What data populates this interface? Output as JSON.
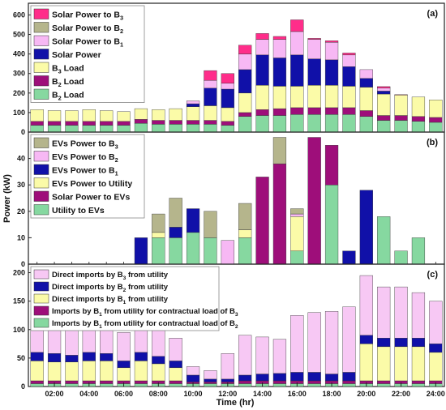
{
  "chart_data": {
    "type": "bar",
    "y_axis_label": "Power (kW)",
    "x_axis_label": "Time (hr)",
    "x_tick_labels": [
      "02:00",
      "04:00",
      "06:00",
      "08:00",
      "10:00",
      "12:00",
      "14:00",
      "16:00",
      "18:00",
      "20:00",
      "22:00",
      "24:00"
    ],
    "hours": [
      1,
      2,
      3,
      4,
      5,
      6,
      7,
      8,
      9,
      10,
      11,
      12,
      13,
      14,
      15,
      16,
      17,
      18,
      19,
      20,
      21,
      22,
      23,
      24
    ],
    "panels": [
      {
        "label": "(a)",
        "ylim": [
          0,
          660
        ],
        "yticks": [
          0,
          100,
          200,
          300,
          400,
          500,
          600
        ],
        "legend_position": "top-left",
        "legend": [
          {
            "text": "Solar Power to B",
            "sub": "3",
            "color": "#ff2d8a"
          },
          {
            "text": "Solar Power to B",
            "sub": "2",
            "color": "#b5b58c"
          },
          {
            "text": "Solar Power to B",
            "sub": "1",
            "color": "#f7b8f4"
          },
          {
            "text": "Solar Power",
            "sub": "",
            "color": "#1010a8"
          },
          {
            "text": "B",
            "sub": "3",
            "suffix": " Load",
            "color": "#fbfba8"
          },
          {
            "text": "B",
            "sub": "2",
            "suffix": " Load",
            "color": "#9e0e7a"
          },
          {
            "text": "B",
            "sub": "2",
            "suffix": " Load",
            "color": "#86d8a0"
          }
        ],
        "series": [
          {
            "name": "B2 Load (base)",
            "color": "#86d8a0",
            "values": [
              35,
              35,
              35,
              35,
              35,
              35,
              45,
              40,
              40,
              40,
              40,
              35,
              80,
              85,
              85,
              90,
              90,
              90,
              90,
              80,
              60,
              60,
              55,
              50
            ]
          },
          {
            "name": "B2 Load",
            "color": "#9e0e7a",
            "values": [
              20,
              20,
              20,
              20,
              20,
              20,
              20,
              20,
              20,
              20,
              20,
              20,
              20,
              30,
              35,
              35,
              35,
              35,
              35,
              30,
              25,
              25,
              25,
              25
            ]
          },
          {
            "name": "B3 Load",
            "color": "#fbfba8",
            "values": [
              60,
              55,
              55,
              60,
              55,
              50,
              55,
              55,
              60,
              70,
              75,
              70,
              100,
              125,
              115,
              110,
              115,
              115,
              110,
              120,
              110,
              105,
              100,
              90
            ]
          },
          {
            "name": "Solar Power",
            "color": "#1010a8",
            "values": [
              0,
              0,
              0,
              0,
              0,
              0,
              0,
              0,
              0,
              15,
              90,
              95,
              120,
              155,
              145,
              160,
              135,
              130,
              100,
              45,
              15,
              0,
              0,
              0
            ]
          },
          {
            "name": "Solar Power to B1",
            "color": "#f7b8f4",
            "values": [
              0,
              0,
              0,
              0,
              0,
              0,
              0,
              0,
              0,
              15,
              40,
              30,
              80,
              80,
              95,
              120,
              100,
              90,
              60,
              45,
              15,
              0,
              0,
              0
            ]
          },
          {
            "name": "Solar Power to B2",
            "color": "#b5b58c",
            "values": [
              0,
              0,
              0,
              0,
              0,
              0,
              0,
              0,
              0,
              0,
              0,
              0,
              0,
              0,
              0,
              0,
              0,
              0,
              0,
              0,
              0,
              0,
              0,
              0
            ]
          },
          {
            "name": "Solar Power to B3",
            "color": "#ff2d8a",
            "values": [
              0,
              0,
              0,
              0,
              0,
              0,
              0,
              0,
              0,
              0,
              50,
              50,
              45,
              30,
              15,
              60,
              5,
              8,
              10,
              0,
              8,
              2,
              0,
              0
            ]
          }
        ]
      },
      {
        "label": "(b)",
        "ylim": [
          0,
          50
        ],
        "yticks": [
          0,
          10,
          20,
          30,
          40
        ],
        "legend_position": "top-left",
        "legend": [
          {
            "text": "EVs Power to B",
            "sub": "3",
            "color": "#b5b58c"
          },
          {
            "text": "EVs Power to B",
            "sub": "2",
            "color": "#f7b8f4"
          },
          {
            "text": "EVs  Power to B",
            "sub": "1",
            "color": "#1010a8"
          },
          {
            "text": "EVs Power to Utility",
            "sub": "",
            "color": "#fbfba8"
          },
          {
            "text": "Solar Power to EVs",
            "sub": "",
            "color": "#9e0e7a"
          },
          {
            "text": "Utility to EVs",
            "sub": "",
            "color": "#86d8a0"
          }
        ],
        "series": [
          {
            "name": "Utility to EVs",
            "color": "#86d8a0",
            "values": [
              0,
              0,
              0,
              0,
              0,
              0,
              0,
              10,
              10,
              12,
              10,
              0,
              10,
              0,
              0,
              5,
              0,
              30,
              0,
              0,
              18,
              5,
              10,
              0
            ]
          },
          {
            "name": "Solar Power to EVs",
            "color": "#9e0e7a",
            "values": [
              0,
              0,
              0,
              0,
              0,
              0,
              0,
              0,
              0,
              0,
              0,
              0,
              0,
              33,
              38,
              0,
              48,
              15,
              0,
              0,
              0,
              0,
              0,
              0
            ]
          },
          {
            "name": "EVs Power to B1",
            "color": "#1010a8",
            "values": [
              0,
              0,
              0,
              0,
              0,
              0,
              10,
              0,
              4,
              9,
              0,
              0,
              0,
              0,
              0,
              0,
              0,
              0,
              5,
              28,
              0,
              0,
              0,
              0
            ]
          },
          {
            "name": "EVs Power to Utility",
            "color": "#fbfba8",
            "values": [
              0,
              0,
              0,
              0,
              0,
              0,
              0,
              2,
              0,
              0,
              0,
              0,
              3,
              0,
              0,
              13,
              0,
              0,
              0,
              0,
              0,
              0,
              0,
              0
            ]
          },
          {
            "name": "EVs Power to B2",
            "color": "#f7b8f4",
            "values": [
              0,
              0,
              0,
              0,
              0,
              0,
              0,
              0,
              0,
              0,
              0,
              9,
              0,
              0,
              0,
              1,
              0,
              0,
              0,
              0,
              0,
              0,
              0,
              0
            ]
          },
          {
            "name": "EVs Power to B3",
            "color": "#b5b58c",
            "values": [
              0,
              0,
              0,
              0,
              0,
              0,
              0,
              7,
              11,
              0,
              10,
              0,
              10,
              0,
              10,
              2,
              0,
              0,
              0,
              0,
              0,
              0,
              0,
              0
            ]
          }
        ]
      },
      {
        "label": "(c)",
        "ylim": [
          0,
          215
        ],
        "yticks": [
          0,
          50,
          100,
          150,
          200
        ],
        "legend_position": "top-left",
        "legend": [
          {
            "text": "Direct imports by B",
            "sub": "3",
            "suffix": " from utility",
            "color": "#f7c8f4"
          },
          {
            "text": "Direct imports by B",
            "sub": "2",
            "suffix": " from utility",
            "color": "#1010a8"
          },
          {
            "text": "Direct imports by B",
            "sub": "1",
            "suffix": " from utility",
            "color": "#fbfba8"
          },
          {
            "text": "Imports by B",
            "sub": "1",
            "suffix": " from utility for contractual load of B",
            "sub2": "3",
            "color": "#9e0e7a"
          },
          {
            "text": "Imports by B",
            "sub": "1",
            "suffix": " from utility for contractual load of B",
            "sub2": "2",
            "color": "#86d8a0"
          }
        ],
        "series": [
          {
            "name": "Contractual load of B2",
            "color": "#86d8a0",
            "values": [
              5,
              5,
              5,
              5,
              5,
              5,
              5,
              5,
              5,
              5,
              5,
              5,
              5,
              5,
              5,
              5,
              5,
              5,
              5,
              5,
              5,
              5,
              5,
              5
            ]
          },
          {
            "name": "Contractual load of B3",
            "color": "#9e0e7a",
            "values": [
              5,
              5,
              5,
              5,
              5,
              5,
              5,
              5,
              5,
              3,
              3,
              3,
              5,
              5,
              5,
              5,
              5,
              5,
              5,
              5,
              5,
              5,
              5,
              5
            ]
          },
          {
            "name": "Direct imports by B1",
            "color": "#fbfba8",
            "values": [
              35,
              33,
              33,
              35,
              35,
              23,
              35,
              30,
              23,
              0,
              0,
              0,
              0,
              0,
              0,
              0,
              0,
              0,
              0,
              65,
              60,
              60,
              60,
              50
            ]
          },
          {
            "name": "Direct imports by B2",
            "color": "#1010a8",
            "values": [
              15,
              15,
              12,
              15,
              13,
              12,
              15,
              13,
              12,
              12,
              5,
              5,
              10,
              12,
              13,
              15,
              15,
              12,
              15,
              15,
              15,
              15,
              15,
              15
            ]
          },
          {
            "name": "Direct imports by B3",
            "color": "#f7c8f4",
            "values": [
              56,
              55,
              55,
              55,
              55,
              50,
              50,
              50,
              40,
              15,
              15,
              45,
              70,
              65,
              60,
              100,
              105,
              110,
              115,
              105,
              90,
              90,
              80,
              75
            ]
          }
        ]
      }
    ]
  }
}
